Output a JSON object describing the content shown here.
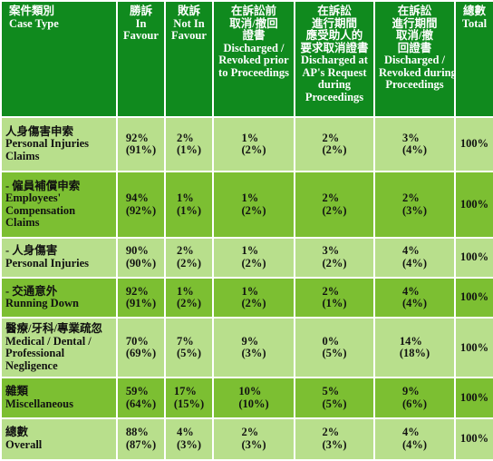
{
  "headers": {
    "case_type": [
      "案件類別",
      "Case Type"
    ],
    "in_favour": [
      "勝訴",
      "In",
      "Favour"
    ],
    "not_in_favour": [
      "敗訴",
      "Not In",
      "Favour"
    ],
    "before": [
      "在訴訟前",
      "取消/撤回",
      "證書",
      "Discharged /",
      "Revoked prior",
      "to Proceedings"
    ],
    "ap_request": [
      "在訴訟",
      "進行期間",
      "應受助人的",
      "要求取消證書",
      "Discharged at",
      "AP's Request",
      "during",
      "Proceedings"
    ],
    "during": [
      "在訴訟",
      "進行期間",
      "取消/撤",
      "回證書",
      "Discharged /",
      "Revoked during",
      "Proceedings"
    ],
    "total": [
      "總數",
      "Total"
    ]
  },
  "rows": [
    {
      "label": [
        "人身傷害申索",
        "Personal Injuries",
        "Claims"
      ],
      "in_favour": [
        "92%",
        "(91%)"
      ],
      "not_in_favour": [
        "2%",
        "(1%)"
      ],
      "before": [
        "1%",
        "(2%)"
      ],
      "ap_request": [
        "2%",
        "(2%)"
      ],
      "during": [
        "3%",
        "(4%)"
      ],
      "total": "100%"
    },
    {
      "label": [
        "- 僱員補償申索",
        "Employees'",
        "Compensation",
        "Claims"
      ],
      "in_favour": [
        "94%",
        "(92%)"
      ],
      "not_in_favour": [
        "1%",
        "(1%)"
      ],
      "before": [
        "1%",
        "(2%)"
      ],
      "ap_request": [
        "2%",
        "(2%)"
      ],
      "during": [
        "2%",
        "(3%)"
      ],
      "total": "100%"
    },
    {
      "label": [
        "- 人身傷害",
        "Personal Injuries"
      ],
      "in_favour": [
        "90%",
        "(90%)"
      ],
      "not_in_favour": [
        "2%",
        "(2%)"
      ],
      "before": [
        "1%",
        "(2%)"
      ],
      "ap_request": [
        "3%",
        "(2%)"
      ],
      "during": [
        "4%",
        "(4%)"
      ],
      "total": "100%"
    },
    {
      "label": [
        "- 交通意外",
        "Running Down"
      ],
      "in_favour": [
        "92%",
        "(91%)"
      ],
      "not_in_favour": [
        "1%",
        "(2%)"
      ],
      "before": [
        "1%",
        "(2%)"
      ],
      "ap_request": [
        "2%",
        "(1%)"
      ],
      "during": [
        "4%",
        "(4%)"
      ],
      "total": "100%"
    },
    {
      "label": [
        "醫療/牙科/專業疏忽",
        "Medical / Dental /",
        "Professional",
        "Negligence"
      ],
      "in_favour": [
        "70%",
        "(69%)"
      ],
      "not_in_favour": [
        "7%",
        "(5%)"
      ],
      "before": [
        "9%",
        "(3%)"
      ],
      "ap_request": [
        "0%",
        "(5%)"
      ],
      "during": [
        "14%",
        "(18%)"
      ],
      "total": "100%"
    },
    {
      "label": [
        "雜類",
        "Miscellaneous"
      ],
      "in_favour": [
        "59%",
        "(64%)"
      ],
      "not_in_favour": [
        "17%",
        "(15%)"
      ],
      "before": [
        "10%",
        "(10%)"
      ],
      "ap_request": [
        "5%",
        "(5%)"
      ],
      "during": [
        "9%",
        "(6%)"
      ],
      "total": "100%"
    },
    {
      "label": [
        "總數",
        "Overall"
      ],
      "in_favour": [
        "88%",
        "(87%)"
      ],
      "not_in_favour": [
        "4%",
        "(3%)"
      ],
      "before": [
        "2%",
        "(3%)"
      ],
      "ap_request": [
        "2%",
        "(3%)"
      ],
      "during": [
        "4%",
        "(4%)"
      ],
      "total": "100%"
    }
  ]
}
